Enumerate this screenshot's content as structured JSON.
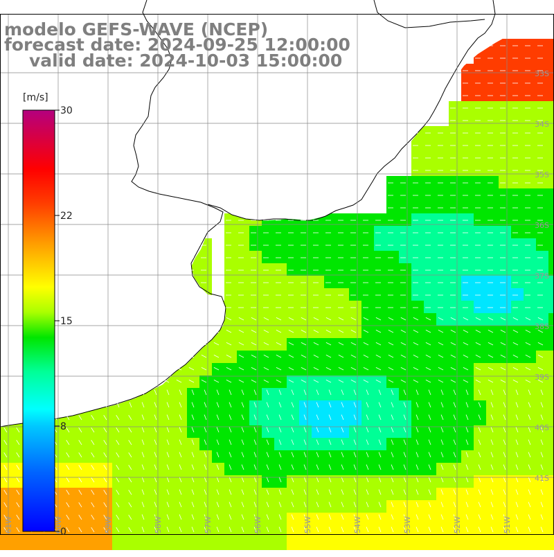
{
  "title": {
    "line1": "modelo GEFS-WAVE (NCEP)",
    "line2": "forecast date: 2024-09-25 12:00:00",
    "line3": "valid date: 2024-10-03 15:00:00"
  },
  "colorbar": {
    "unit": "[m/s]",
    "ticks": [
      "30",
      "22",
      "15",
      "8",
      "0"
    ],
    "tick_values": [
      30,
      22,
      15,
      8,
      0
    ],
    "colors": [
      "#0000ff",
      "#0096ff",
      "#00e6ff",
      "#00ff96",
      "#00e600",
      "#aaff00",
      "#ffff00",
      "#ffa000",
      "#ff3c00",
      "#ff0000",
      "#cc0066",
      "#b4007f"
    ]
  },
  "map": {
    "lat_labels": [
      "33S",
      "34S",
      "35S",
      "36S",
      "37S",
      "38S",
      "39S",
      "40S",
      "41S"
    ],
    "lon_labels": [
      "61W",
      "60W",
      "59W",
      "58W",
      "57W",
      "56W",
      "55W",
      "54W",
      "53W",
      "52W",
      "51W"
    ],
    "land_color": "#ffffff",
    "arrow_color": "#ffffff",
    "coast_color": "#000000"
  }
}
